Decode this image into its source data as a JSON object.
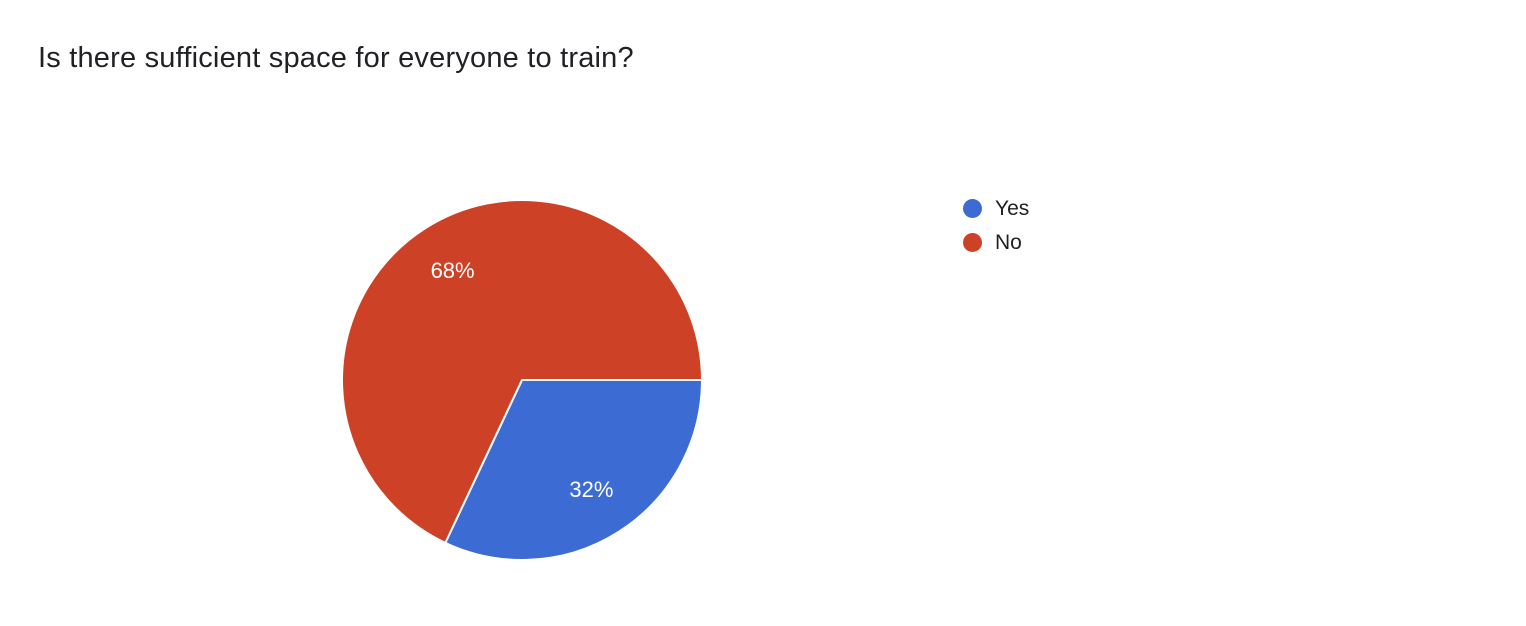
{
  "page": {
    "background_color": "#ffffff",
    "title_color": "#202124"
  },
  "chart_data": {
    "type": "pie",
    "title": "Is there sufficient space for everyone to train?",
    "slices": [
      {
        "label": "Yes",
        "value": 32,
        "display": "32%",
        "color": "#3c6bd3"
      },
      {
        "label": "No",
        "value": 68,
        "display": "68%",
        "color": "#cd4226"
      }
    ],
    "total_percent": 100,
    "start_angle_deg_from_east": 0,
    "direction": "clockwise",
    "slice_label_color": "#ffffff",
    "slice_border_color": "#ffffff",
    "legend_position": "right",
    "legend_entries": [
      "Yes",
      "No"
    ]
  }
}
